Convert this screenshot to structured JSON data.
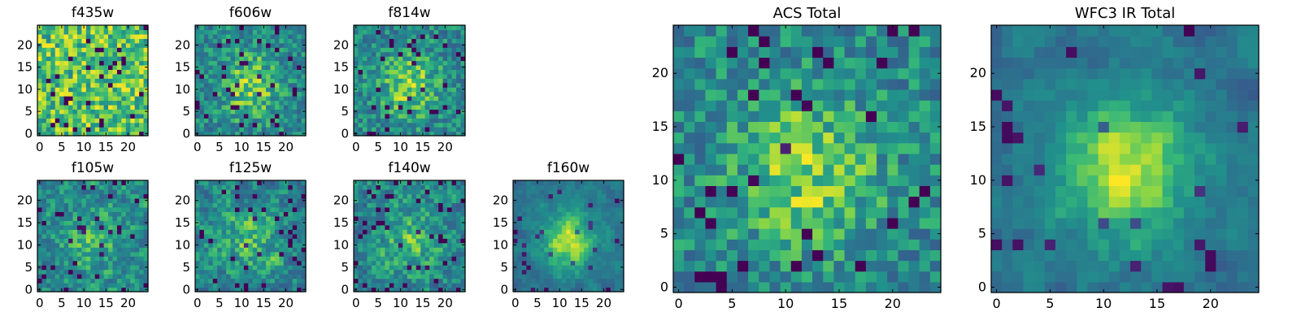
{
  "chart_data": [
    {
      "id": "f435w",
      "type": "heatmap",
      "title": "f435w",
      "size": "small",
      "grid_size": 25,
      "pattern": "noisy-bright",
      "seed": 11,
      "xlim": [
        0,
        24
      ],
      "ylim": [
        0,
        24
      ],
      "xticks": [
        0,
        5,
        10,
        15,
        20
      ],
      "yticks": [
        0,
        5,
        10,
        15,
        20
      ],
      "xtick_labels": [
        "0",
        "5",
        "10",
        "15",
        "20"
      ],
      "ytick_labels": [
        "0",
        "5",
        "10",
        "15",
        "20"
      ],
      "colormap": "viridis",
      "grid": false
    },
    {
      "id": "f606w",
      "type": "heatmap",
      "title": "f606w",
      "size": "small",
      "grid_size": 25,
      "pattern": "noisy-center",
      "seed": 23,
      "xlim": [
        0,
        24
      ],
      "ylim": [
        0,
        24
      ],
      "xticks": [
        0,
        5,
        10,
        15,
        20
      ],
      "yticks": [
        0,
        5,
        10,
        15,
        20
      ],
      "xtick_labels": [
        "0",
        "5",
        "10",
        "15",
        "20"
      ],
      "ytick_labels": [
        "0",
        "5",
        "10",
        "15",
        "20"
      ],
      "colormap": "viridis",
      "grid": false
    },
    {
      "id": "f814w",
      "type": "heatmap",
      "title": "f814w",
      "size": "small",
      "grid_size": 25,
      "pattern": "noisy-center",
      "seed": 37,
      "xlim": [
        0,
        24
      ],
      "ylim": [
        0,
        24
      ],
      "xticks": [
        0,
        5,
        10,
        15,
        20
      ],
      "yticks": [
        0,
        5,
        10,
        15,
        20
      ],
      "xtick_labels": [
        "0",
        "5",
        "10",
        "15",
        "20"
      ],
      "ytick_labels": [
        "0",
        "5",
        "10",
        "15",
        "20"
      ],
      "colormap": "viridis",
      "grid": false
    },
    {
      "id": "f105w",
      "type": "heatmap",
      "title": "f105w",
      "size": "small",
      "grid_size": 25,
      "pattern": "smooth-noisy",
      "seed": 41,
      "xlim": [
        0,
        24
      ],
      "ylim": [
        0,
        24
      ],
      "xticks": [
        0,
        5,
        10,
        15,
        20
      ],
      "yticks": [
        0,
        5,
        10,
        15,
        20
      ],
      "xtick_labels": [
        "0",
        "5",
        "10",
        "15",
        "20"
      ],
      "ytick_labels": [
        "0",
        "5",
        "10",
        "15",
        "20"
      ],
      "colormap": "viridis",
      "grid": false
    },
    {
      "id": "f125w",
      "type": "heatmap",
      "title": "f125w",
      "size": "small",
      "grid_size": 25,
      "pattern": "smooth-noisy",
      "seed": 53,
      "xlim": [
        0,
        24
      ],
      "ylim": [
        0,
        24
      ],
      "xticks": [
        0,
        5,
        10,
        15,
        20
      ],
      "yticks": [
        0,
        5,
        10,
        15,
        20
      ],
      "xtick_labels": [
        "0",
        "5",
        "10",
        "15",
        "20"
      ],
      "ytick_labels": [
        "0",
        "5",
        "10",
        "15",
        "20"
      ],
      "colormap": "viridis",
      "grid": false
    },
    {
      "id": "f140w",
      "type": "heatmap",
      "title": "f140w",
      "size": "small",
      "grid_size": 25,
      "pattern": "smooth-noisy",
      "seed": 67,
      "xlim": [
        0,
        24
      ],
      "ylim": [
        0,
        24
      ],
      "xticks": [
        0,
        5,
        10,
        15,
        20
      ],
      "yticks": [
        0,
        5,
        10,
        15,
        20
      ],
      "xtick_labels": [
        "0",
        "5",
        "10",
        "15",
        "20"
      ],
      "ytick_labels": [
        "0",
        "5",
        "10",
        "15",
        "20"
      ],
      "colormap": "viridis",
      "grid": false
    },
    {
      "id": "f160w",
      "type": "heatmap",
      "title": "f160w",
      "size": "small",
      "grid_size": 25,
      "pattern": "smooth-center",
      "seed": 79,
      "xlim": [
        0,
        24
      ],
      "ylim": [
        0,
        24
      ],
      "xticks": [
        0,
        5,
        10,
        15,
        20
      ],
      "yticks": [
        0,
        5,
        10,
        15,
        20
      ],
      "xtick_labels": [
        "0",
        "5",
        "10",
        "15",
        "20"
      ],
      "ytick_labels": [
        "0",
        "5",
        "10",
        "15",
        "20"
      ],
      "colormap": "viridis",
      "grid": false
    },
    {
      "id": "acs_total",
      "type": "heatmap",
      "title": "ACS Total",
      "size": "large",
      "grid_size": 25,
      "pattern": "noisy-center",
      "seed": 97,
      "xlim": [
        0,
        24
      ],
      "ylim": [
        0,
        24
      ],
      "xticks": [
        0,
        5,
        10,
        15,
        20
      ],
      "yticks": [
        0,
        5,
        10,
        15,
        20
      ],
      "xtick_labels": [
        "0",
        "5",
        "10",
        "15",
        "20"
      ],
      "ytick_labels": [
        "0",
        "5",
        "10",
        "15",
        "20"
      ],
      "colormap": "viridis",
      "grid": false
    },
    {
      "id": "wfc3_ir_total",
      "type": "heatmap",
      "title": "WFC3 IR Total",
      "size": "large",
      "grid_size": 25,
      "pattern": "smooth-center",
      "seed": 113,
      "xlim": [
        0,
        24
      ],
      "ylim": [
        0,
        24
      ],
      "xticks": [
        0,
        5,
        10,
        15,
        20
      ],
      "yticks": [
        0,
        5,
        10,
        15,
        20
      ],
      "xtick_labels": [
        "0",
        "5",
        "10",
        "15",
        "20"
      ],
      "ytick_labels": [
        "0",
        "5",
        "10",
        "15",
        "20"
      ],
      "colormap": "viridis",
      "grid": false
    }
  ]
}
